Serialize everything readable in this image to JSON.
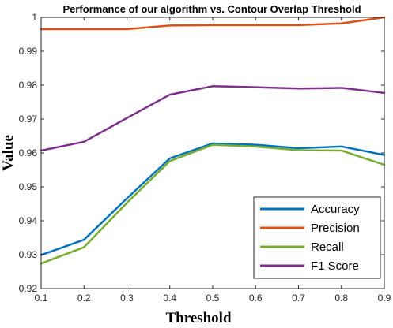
{
  "chart_data": {
    "type": "line",
    "title": "Performance of our algorithm vs. Contour Overlap Threshold",
    "xlabel": "Threshold",
    "ylabel": "Value",
    "xlim": [
      0.1,
      0.9
    ],
    "ylim": [
      0.92,
      1.0
    ],
    "xticks": [
      "0.1",
      "0.2",
      "0.3",
      "0.4",
      "0.5",
      "0.6",
      "0.7",
      "0.8",
      "0.9"
    ],
    "yticks": [
      "0.92",
      "0.93",
      "0.94",
      "0.95",
      "0.96",
      "0.97",
      "0.98",
      "0.99",
      "1"
    ],
    "x": [
      0.1,
      0.2,
      0.3,
      0.4,
      0.5,
      0.6,
      0.7,
      0.8,
      0.9
    ],
    "grid": false,
    "legend_position": "bottom-right",
    "series": [
      {
        "name": "Accuracy",
        "color": "#0072BD",
        "values": [
          0.9299,
          0.9344,
          0.9466,
          0.9584,
          0.9628,
          0.9624,
          0.9614,
          0.9619,
          0.9594
        ]
      },
      {
        "name": "Precision",
        "color": "#D95319",
        "values": [
          0.9965,
          0.9965,
          0.9965,
          0.9976,
          0.9977,
          0.9977,
          0.9977,
          0.9982,
          1.0
        ]
      },
      {
        "name": "Recall",
        "color": "#77AC30",
        "values": [
          0.9274,
          0.9322,
          0.9453,
          0.9576,
          0.9624,
          0.9619,
          0.9608,
          0.9607,
          0.9565
        ]
      },
      {
        "name": "F1 Score",
        "color": "#7E2F8E",
        "values": [
          0.9607,
          0.9633,
          0.9703,
          0.9772,
          0.9797,
          0.9794,
          0.979,
          0.9792,
          0.9777
        ]
      }
    ]
  }
}
